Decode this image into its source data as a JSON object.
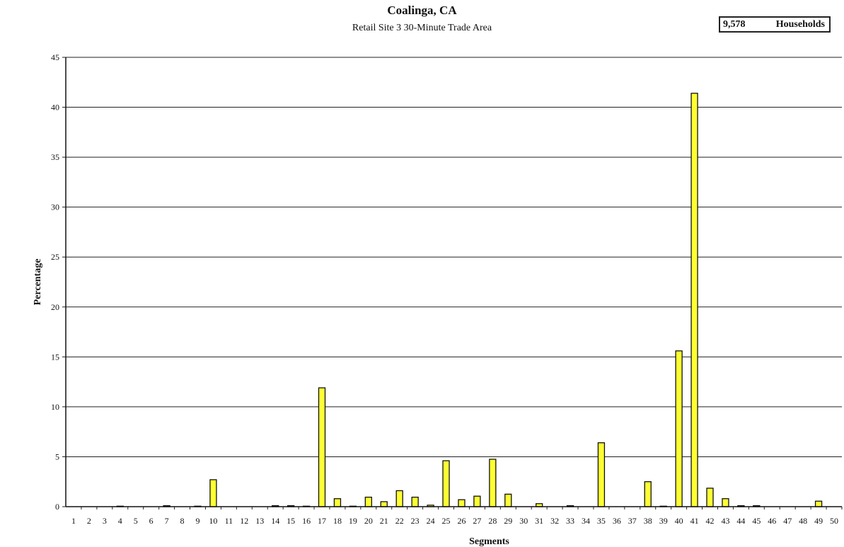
{
  "chart_data": {
    "type": "bar",
    "title": "Coalinga, CA",
    "subtitle": "Retail Site 3 30-Minute Trade Area",
    "households": {
      "count": "9,578",
      "label": "Households"
    },
    "xlabel": "Segments",
    "ylabel": "Percentage",
    "ylim": [
      0,
      45
    ],
    "yticks": [
      "0",
      "5",
      "10",
      "15",
      "20",
      "25",
      "30",
      "35",
      "40",
      "45"
    ],
    "grid": true,
    "bar_color": "#ffff33",
    "categories": [
      "1",
      "2",
      "3",
      "4",
      "5",
      "6",
      "7",
      "8",
      "9",
      "10",
      "11",
      "12",
      "13",
      "14",
      "15",
      "16",
      "17",
      "18",
      "19",
      "20",
      "21",
      "22",
      "23",
      "24",
      "25",
      "26",
      "27",
      "28",
      "29",
      "30",
      "31",
      "32",
      "33",
      "34",
      "35",
      "36",
      "37",
      "38",
      "39",
      "40",
      "41",
      "42",
      "43",
      "44",
      "45",
      "46",
      "47",
      "48",
      "49",
      "50"
    ],
    "values": [
      0,
      0,
      0,
      0.05,
      0,
      0,
      0.1,
      0,
      0.05,
      2.7,
      0,
      0,
      0,
      0.1,
      0.1,
      0.05,
      11.9,
      0.8,
      0.05,
      0.95,
      0.5,
      1.6,
      0.95,
      0.15,
      4.6,
      0.7,
      1.05,
      4.75,
      1.25,
      0,
      0.3,
      0,
      0.1,
      0,
      6.4,
      0,
      0,
      2.5,
      0.05,
      15.6,
      41.4,
      1.85,
      0.8,
      0.1,
      0.1,
      0,
      0,
      0,
      0.55,
      0
    ]
  }
}
